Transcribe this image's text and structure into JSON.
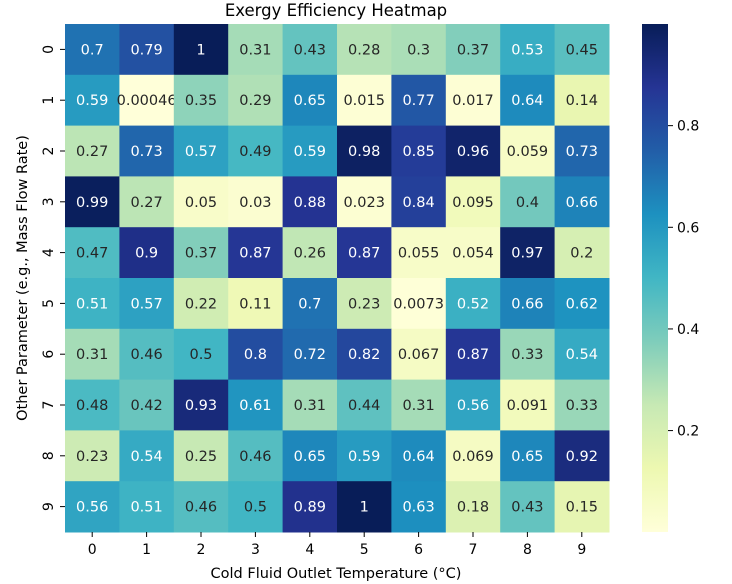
{
  "chart_data": {
    "type": "heatmap",
    "title": "Exergy Efficiency Heatmap",
    "xlabel": "Cold Fluid Outlet Temperature (°C)",
    "ylabel": "Other Parameter (e.g., Mass Flow Rate)",
    "x_categories": [
      "0",
      "1",
      "2",
      "3",
      "4",
      "5",
      "6",
      "7",
      "8",
      "9"
    ],
    "y_categories": [
      "0",
      "1",
      "2",
      "3",
      "4",
      "5",
      "6",
      "7",
      "8",
      "9"
    ],
    "values": [
      [
        0.7,
        0.79,
        1,
        0.31,
        0.43,
        0.28,
        0.3,
        0.37,
        0.53,
        0.45
      ],
      [
        0.59,
        0.00046,
        0.35,
        0.29,
        0.65,
        0.015,
        0.77,
        0.017,
        0.64,
        0.14
      ],
      [
        0.27,
        0.73,
        0.57,
        0.49,
        0.59,
        0.98,
        0.85,
        0.96,
        0.059,
        0.73
      ],
      [
        0.99,
        0.27,
        0.05,
        0.03,
        0.88,
        0.023,
        0.84,
        0.095,
        0.4,
        0.66
      ],
      [
        0.47,
        0.9,
        0.37,
        0.87,
        0.26,
        0.87,
        0.055,
        0.054,
        0.97,
        0.2
      ],
      [
        0.51,
        0.57,
        0.22,
        0.11,
        0.7,
        0.23,
        0.0073,
        0.52,
        0.66,
        0.62
      ],
      [
        0.31,
        0.46,
        0.5,
        0.8,
        0.72,
        0.82,
        0.067,
        0.87,
        0.33,
        0.54
      ],
      [
        0.48,
        0.42,
        0.93,
        0.61,
        0.31,
        0.44,
        0.31,
        0.56,
        0.091,
        0.33
      ],
      [
        0.23,
        0.54,
        0.25,
        0.46,
        0.65,
        0.59,
        0.64,
        0.069,
        0.65,
        0.92
      ],
      [
        0.56,
        0.51,
        0.46,
        0.5,
        0.89,
        1,
        0.63,
        0.18,
        0.43,
        0.15
      ]
    ],
    "labels": [
      [
        "0.7",
        "0.79",
        "1",
        "0.31",
        "0.43",
        "0.28",
        "0.3",
        "0.37",
        "0.53",
        "0.45"
      ],
      [
        "0.59",
        "0.00046",
        "0.35",
        "0.29",
        "0.65",
        "0.015",
        "0.77",
        "0.017",
        "0.64",
        "0.14"
      ],
      [
        "0.27",
        "0.73",
        "0.57",
        "0.49",
        "0.59",
        "0.98",
        "0.85",
        "0.96",
        "0.059",
        "0.73"
      ],
      [
        "0.99",
        "0.27",
        "0.05",
        "0.03",
        "0.88",
        "0.023",
        "0.84",
        "0.095",
        "0.4",
        "0.66"
      ],
      [
        "0.47",
        "0.9",
        "0.37",
        "0.87",
        "0.26",
        "0.87",
        "0.055",
        "0.054",
        "0.97",
        "0.2"
      ],
      [
        "0.51",
        "0.57",
        "0.22",
        "0.11",
        "0.7",
        "0.23",
        "0.0073",
        "0.52",
        "0.66",
        "0.62"
      ],
      [
        "0.31",
        "0.46",
        "0.5",
        "0.8",
        "0.72",
        "0.82",
        "0.067",
        "0.87",
        "0.33",
        "0.54"
      ],
      [
        "0.48",
        "0.42",
        "0.93",
        "0.61",
        "0.31",
        "0.44",
        "0.31",
        "0.56",
        "0.091",
        "0.33"
      ],
      [
        "0.23",
        "0.54",
        "0.25",
        "0.46",
        "0.65",
        "0.59",
        "0.64",
        "0.069",
        "0.65",
        "0.92"
      ],
      [
        "0.56",
        "0.51",
        "0.46",
        "0.5",
        "0.89",
        "1",
        "0.63",
        "0.18",
        "0.43",
        "0.15"
      ]
    ],
    "colormap": "YlGnBu",
    "colormap_stops": [
      "#ffffd9",
      "#edf8b1",
      "#c7e9b4",
      "#7fcdbb",
      "#41b6c4",
      "#1d91c0",
      "#225ea8",
      "#253494",
      "#081d58"
    ],
    "vmin": 0.00046,
    "vmax": 1,
    "colorbar_ticks": [
      "0.2",
      "0.4",
      "0.6",
      "0.8"
    ],
    "colorbar_tick_values": [
      0.2,
      0.4,
      0.6,
      0.8
    ],
    "annotation_threshold": 0.5,
    "dark_text_color": "#262626",
    "light_text_color": "#ffffff"
  }
}
